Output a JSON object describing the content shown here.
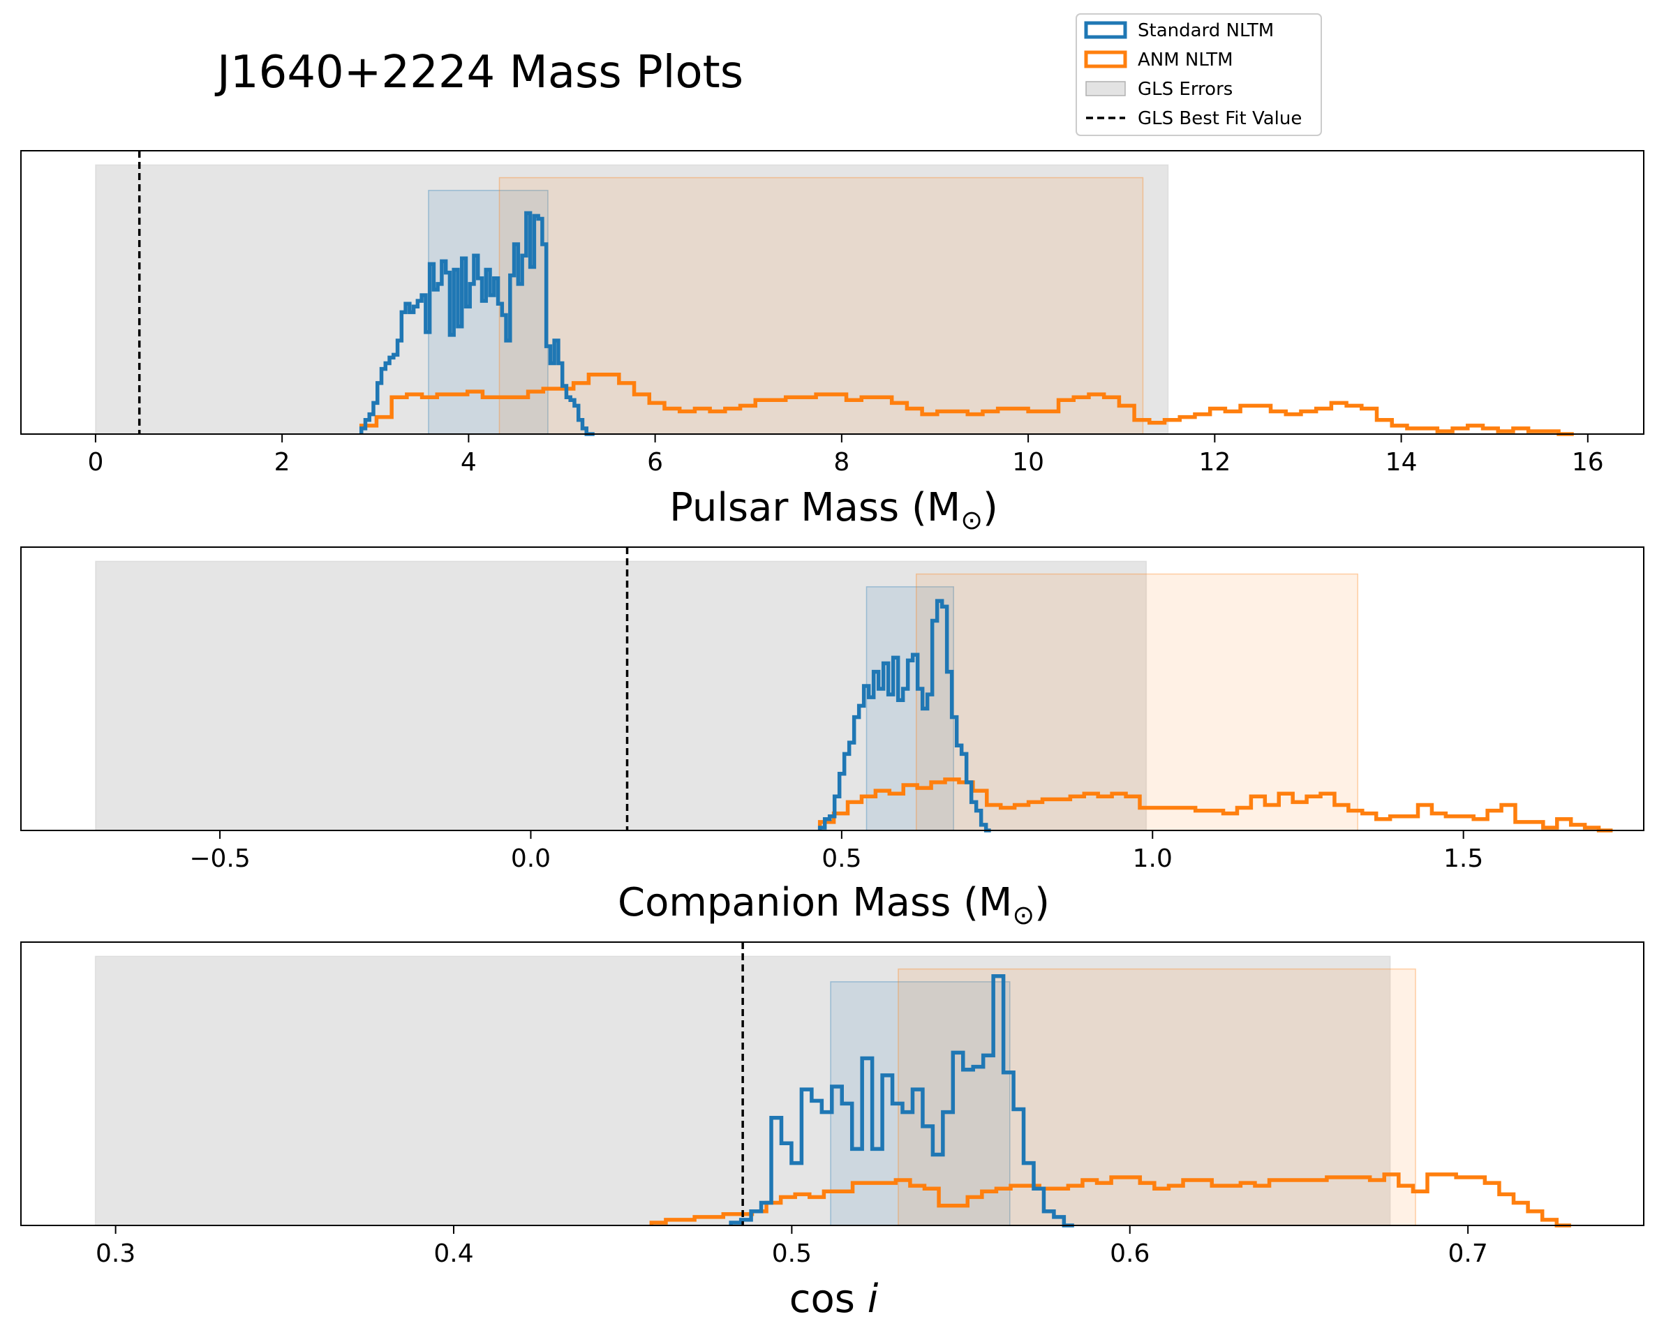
{
  "title": "J1640+2224 Mass Plots",
  "colors": {
    "standard": "#1f77b4",
    "anm": "#ff7f0e",
    "gls_fill": "#c0c0c0",
    "best_fit": "#000000"
  },
  "legend": {
    "position": "top-right",
    "entries": [
      {
        "label": "Standard NLTM",
        "kind": "hist-step",
        "color": "#1f77b4"
      },
      {
        "label": "ANM NLTM",
        "kind": "hist-step",
        "color": "#ff7f0e"
      },
      {
        "label": "GLS Errors",
        "kind": "patch",
        "color": "#c0c0c0"
      },
      {
        "label": "GLS Best Fit Value",
        "kind": "dashed",
        "color": "#000000"
      }
    ]
  },
  "chart_data": [
    {
      "type": "histogram",
      "xlabel_main": "Pulsar Mass (M",
      "xlabel_sub": "⊙",
      "xlabel_tail": ")",
      "xlim": [
        -0.8,
        16.6
      ],
      "ylim": [
        0,
        1.0
      ],
      "xticks": [
        0,
        2,
        4,
        6,
        8,
        10,
        12,
        14,
        16
      ],
      "tick_labels": [
        "0",
        "2",
        "4",
        "6",
        "8",
        "10",
        "12",
        "14",
        "16"
      ],
      "gls_best_fit": 0.47,
      "gls_errors": [
        0.0,
        11.5
      ],
      "standard_band": [
        3.57,
        4.85
      ],
      "anm_band": [
        4.33,
        11.23
      ],
      "series": [
        {
          "name": "Standard NLTM",
          "edges_range": [
            2.85,
            5.35
          ],
          "counts": [
            0.02,
            0.05,
            0.07,
            0.11,
            0.18,
            0.23,
            0.25,
            0.27,
            0.28,
            0.33,
            0.43,
            0.46,
            0.43,
            0.45,
            0.47,
            0.49,
            0.36,
            0.6,
            0.51,
            0.53,
            0.61,
            0.57,
            0.35,
            0.58,
            0.38,
            0.62,
            0.45,
            0.53,
            0.63,
            0.55,
            0.47,
            0.58,
            0.49,
            0.55,
            0.46,
            0.42,
            0.33,
            0.56,
            0.67,
            0.53,
            0.63,
            0.78,
            0.59,
            0.77,
            0.76,
            0.67,
            0.31,
            0.25,
            0.33,
            0.25,
            0.17,
            0.13,
            0.12,
            0.1,
            0.05,
            0.02,
            0.0,
            0.0
          ]
        },
        {
          "name": "ANM NLTM",
          "edges_range": [
            2.85,
            15.85
          ],
          "counts": [
            0.03,
            0.06,
            0.13,
            0.14,
            0.13,
            0.14,
            0.14,
            0.15,
            0.13,
            0.13,
            0.13,
            0.15,
            0.16,
            0.16,
            0.18,
            0.21,
            0.21,
            0.18,
            0.14,
            0.11,
            0.09,
            0.08,
            0.09,
            0.08,
            0.09,
            0.1,
            0.12,
            0.12,
            0.13,
            0.13,
            0.14,
            0.14,
            0.12,
            0.13,
            0.13,
            0.11,
            0.09,
            0.07,
            0.08,
            0.08,
            0.07,
            0.08,
            0.09,
            0.09,
            0.08,
            0.08,
            0.12,
            0.13,
            0.14,
            0.13,
            0.1,
            0.05,
            0.04,
            0.05,
            0.06,
            0.07,
            0.09,
            0.08,
            0.1,
            0.1,
            0.08,
            0.07,
            0.08,
            0.09,
            0.11,
            0.1,
            0.09,
            0.05,
            0.03,
            0.02,
            0.02,
            0.01,
            0.02,
            0.03,
            0.02,
            0.01,
            0.02,
            0.01,
            0.01,
            0.0
          ]
        }
      ]
    },
    {
      "type": "histogram",
      "xlabel_main": "Companion Mass (M",
      "xlabel_sub": "⊙",
      "xlabel_tail": ")",
      "xlim": [
        -0.82,
        1.79
      ],
      "ylim": [
        0,
        1.0
      ],
      "xticks": [
        -0.5,
        0.0,
        0.5,
        1.0,
        1.5
      ],
      "tick_labels": [
        "−0.5",
        "0.0",
        "0.5",
        "1.0",
        "1.5"
      ],
      "gls_best_fit": 0.155,
      "gls_errors": [
        -0.7,
        0.99
      ],
      "standard_band": [
        0.54,
        0.68
      ],
      "anm_band": [
        0.62,
        1.33
      ],
      "series": [
        {
          "name": "Standard NLTM",
          "edges_range": [
            0.465,
            0.74
          ],
          "counts": [
            0.01,
            0.04,
            0.05,
            0.12,
            0.2,
            0.27,
            0.31,
            0.4,
            0.44,
            0.51,
            0.47,
            0.56,
            0.5,
            0.59,
            0.48,
            0.61,
            0.46,
            0.5,
            0.6,
            0.62,
            0.5,
            0.43,
            0.48,
            0.74,
            0.81,
            0.79,
            0.56,
            0.4,
            0.3,
            0.27,
            0.17,
            0.1,
            0.07,
            0.02,
            0.0
          ]
        },
        {
          "name": "ANM NLTM",
          "edges_range": [
            0.465,
            1.74
          ],
          "counts": [
            0.03,
            0.06,
            0.1,
            0.12,
            0.14,
            0.13,
            0.16,
            0.15,
            0.17,
            0.18,
            0.17,
            0.14,
            0.09,
            0.08,
            0.09,
            0.1,
            0.11,
            0.11,
            0.12,
            0.13,
            0.12,
            0.13,
            0.12,
            0.08,
            0.08,
            0.08,
            0.08,
            0.07,
            0.07,
            0.06,
            0.08,
            0.12,
            0.09,
            0.13,
            0.1,
            0.12,
            0.13,
            0.09,
            0.07,
            0.06,
            0.04,
            0.05,
            0.05,
            0.09,
            0.06,
            0.05,
            0.05,
            0.04,
            0.07,
            0.09,
            0.03,
            0.03,
            0.01,
            0.04,
            0.02,
            0.01,
            0.0
          ]
        }
      ]
    },
    {
      "type": "histogram",
      "xlabel_main": "cos ",
      "xlabel_italic": "i",
      "xlim": [
        0.272,
        0.752
      ],
      "ylim": [
        0,
        1.0
      ],
      "xticks": [
        0.3,
        0.4,
        0.5,
        0.6,
        0.7
      ],
      "tick_labels": [
        "0.3",
        "0.4",
        "0.5",
        "0.6",
        "0.7"
      ],
      "gls_best_fit": 0.4855,
      "gls_errors": [
        0.294,
        0.677
      ],
      "standard_band": [
        0.5115,
        0.5645
      ],
      "anm_band": [
        0.5315,
        0.6845
      ],
      "series": [
        {
          "name": "Standard NLTM",
          "edges_range": [
            0.482,
            0.5835
          ],
          "counts": [
            0.01,
            0.02,
            0.05,
            0.08,
            0.38,
            0.29,
            0.22,
            0.48,
            0.44,
            0.4,
            0.49,
            0.43,
            0.27,
            0.59,
            0.27,
            0.53,
            0.43,
            0.4,
            0.48,
            0.35,
            0.25,
            0.4,
            0.61,
            0.55,
            0.56,
            0.6,
            0.88,
            0.54,
            0.41,
            0.22,
            0.13,
            0.05,
            0.03,
            0.0
          ]
        },
        {
          "name": "ANM NLTM",
          "edges_range": [
            0.4585,
            0.7305
          ],
          "counts": [
            0.01,
            0.02,
            0.02,
            0.03,
            0.03,
            0.04,
            0.04,
            0.05,
            0.08,
            0.1,
            0.11,
            0.1,
            0.12,
            0.12,
            0.15,
            0.15,
            0.15,
            0.16,
            0.14,
            0.13,
            0.07,
            0.07,
            0.1,
            0.12,
            0.13,
            0.14,
            0.14,
            0.13,
            0.13,
            0.14,
            0.16,
            0.15,
            0.17,
            0.17,
            0.15,
            0.13,
            0.14,
            0.16,
            0.16,
            0.14,
            0.14,
            0.15,
            0.14,
            0.16,
            0.16,
            0.16,
            0.16,
            0.17,
            0.17,
            0.17,
            0.16,
            0.18,
            0.14,
            0.12,
            0.18,
            0.18,
            0.17,
            0.17,
            0.15,
            0.11,
            0.08,
            0.05,
            0.02,
            0.0
          ]
        }
      ]
    }
  ]
}
